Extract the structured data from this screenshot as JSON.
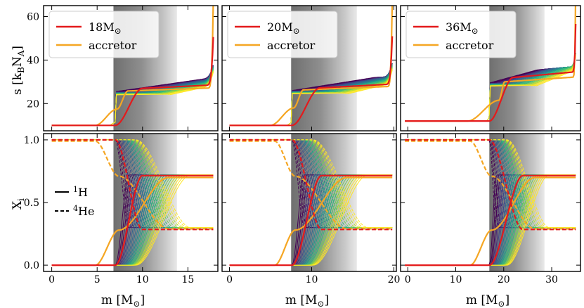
{
  "colors": {
    "model": "#e41a1c",
    "accretor": "#f5a623",
    "viridis": [
      "#440154",
      "#482878",
      "#3e4989",
      "#31688e",
      "#26828e",
      "#1f9e89",
      "#35b779",
      "#6ece58",
      "#b5de2b",
      "#fde725"
    ]
  },
  "axis_labels": {
    "top_ylabel_main": "s [k",
    "top_ylabel_sub1": "B",
    "top_ylabel_mid": "N",
    "top_ylabel_sub2": "A",
    "top_ylabel_end": "]",
    "bottom_ylabel_main": "X",
    "bottom_ylabel_sub": "i",
    "xlabel_main": "m [M",
    "xlabel_sub": "⊙",
    "xlabel_end": "]"
  },
  "linestyle_legend": {
    "h1_sup": "1",
    "h1_label": "H",
    "he4_sup": "4",
    "he4_label": "He"
  },
  "chart_data": [
    {
      "type": "line",
      "panel": "top-left",
      "legend": {
        "model": "18M",
        "model_sub": "⊙",
        "accretor": "accretor"
      },
      "xlim": [
        -0.9,
        18.3
      ],
      "ylim": [
        7.5,
        65
      ],
      "xticks": [],
      "yticks": [
        20,
        40,
        60
      ],
      "shade": [
        6.8,
        13.8
      ],
      "params": {
        "Mc": 7.0,
        "Me": 13.5,
        "Mt": 17.8,
        "base": 10.0,
        "plat": 25.5,
        "redAt": 10.0,
        "redPlat": 27.0,
        "accEdge": 7.2,
        "accPlat": 25.8,
        "accStep": 4.8
      }
    },
    {
      "type": "line",
      "panel": "top-middle",
      "legend": {
        "model": "20M",
        "model_sub": "⊙",
        "accretor": "accretor"
      },
      "xlim": [
        -0.9,
        20.3
      ],
      "ylim": [
        7.5,
        65
      ],
      "xticks": [],
      "yticks": [
        20,
        40,
        60
      ],
      "shade": [
        7.5,
        15.5
      ],
      "params": {
        "Mc": 7.6,
        "Me": 15.0,
        "Mt": 19.8,
        "base": 10.0,
        "plat": 26.0,
        "redAt": 11.0,
        "redPlat": 27.2,
        "accEdge": 7.8,
        "accPlat": 26.3,
        "accStep": 5.0
      }
    },
    {
      "type": "line",
      "panel": "top-right",
      "legend": {
        "model": "36M",
        "model_sub": "⊙",
        "accretor": "accretor"
      },
      "xlim": [
        -1.5,
        36.0
      ],
      "ylim": [
        7.5,
        65
      ],
      "xticks": [],
      "yticks": [
        20,
        40,
        60
      ],
      "shade": [
        17.0,
        28.5
      ],
      "params": {
        "Mc": 17.0,
        "Me": 27.5,
        "Mt": 35.0,
        "base": 12.0,
        "plat": 29.5,
        "redAt": 22.0,
        "redPlat": 32.0,
        "accEdge": 19.0,
        "accPlat": 30.0,
        "accStep": 12.5
      }
    },
    {
      "type": "line",
      "panel": "bottom-left",
      "xlabel": "m [M⊙]",
      "xlim": [
        -0.9,
        18.3
      ],
      "ylim": [
        -0.05,
        1.05
      ],
      "xticks": [
        0,
        5,
        10,
        15
      ],
      "yticks": [
        0.0,
        0.5,
        1.0
      ],
      "ytick_labels": [
        "0.0",
        "0.5",
        "1.0"
      ],
      "shade": [
        6.8,
        13.8
      ],
      "params": {
        "Mc": 7.0,
        "Me": 13.5,
        "Mt": 17.8,
        "accIn": 4.8,
        "accOut": 7.4,
        "redIn": 7.0,
        "redOut": 10.0
      }
    },
    {
      "type": "line",
      "panel": "bottom-middle",
      "xlabel": "m [M⊙]",
      "xlim": [
        -0.9,
        20.3
      ],
      "ylim": [
        -0.05,
        1.05
      ],
      "xticks": [
        0,
        10,
        20
      ],
      "yticks": [
        0.0,
        0.5,
        1.0
      ],
      "ytick_labels": [],
      "shade": [
        7.5,
        15.5
      ],
      "params": {
        "Mc": 7.6,
        "Me": 15.0,
        "Mt": 19.8,
        "accIn": 5.5,
        "accOut": 8.0,
        "redIn": 7.6,
        "redOut": 11.2
      }
    },
    {
      "type": "line",
      "panel": "bottom-right",
      "xlabel": "m [M⊙]",
      "xlim": [
        -1.5,
        36.0
      ],
      "ylim": [
        -0.05,
        1.05
      ],
      "xticks": [
        0,
        10,
        20,
        30
      ],
      "yticks": [
        0.0,
        0.5,
        1.0
      ],
      "ytick_labels": [],
      "shade": [
        17.0,
        28.5
      ],
      "params": {
        "Mc": 17.0,
        "Me": 27.5,
        "Mt": 35.0,
        "accIn": 13.0,
        "accOut": 17.5,
        "redIn": 17.0,
        "redOut": 24.0
      }
    }
  ]
}
